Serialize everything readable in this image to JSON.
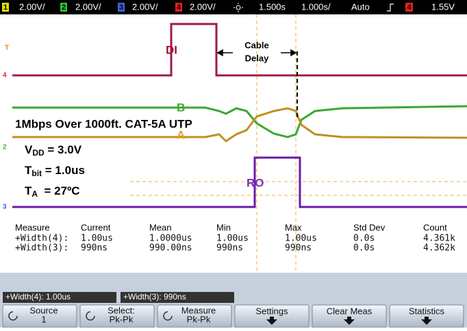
{
  "status_bar": {
    "ch1": {
      "num": "1",
      "scale": "2.00V/"
    },
    "ch2": {
      "num": "2",
      "scale": "2.00V/"
    },
    "ch3": {
      "num": "3",
      "scale": "2.00V/"
    },
    "ch4": {
      "num": "4",
      "scale": "2.00V/"
    },
    "delay": "1.500s",
    "timebase": "1.000s/",
    "mode": "Auto",
    "trigger_source": "4",
    "trigger_level": "1.55V"
  },
  "annotations": {
    "di": "DI",
    "cable_delay": [
      "Cable",
      "Delay"
    ],
    "b": "B",
    "a": "A",
    "headline": "1Mbps Over 1000ft. CAT-5A UTP",
    "vdd": [
      "V",
      "DD",
      " = 3.0V"
    ],
    "tbit": [
      "T",
      "bit",
      " = 1.0us"
    ],
    "ta": [
      "T",
      "A",
      "  = 27ºC"
    ],
    "ro": "RO"
  },
  "channel_markers": [
    "T",
    "4",
    "2",
    "3"
  ],
  "measurements": {
    "header": [
      "Measure",
      "Current",
      "Mean",
      "Min",
      "Max",
      "Std Dev",
      "Count"
    ],
    "rows": [
      [
        "+Width(4):",
        "1.00us",
        "1.0000us",
        "1.00us",
        "1.00us",
        "0.0s",
        "4.361k"
      ],
      [
        "+Width(3):",
        "990ns",
        "990.00ns",
        "990ns",
        "990ns",
        "0.0s",
        "4.362k"
      ]
    ]
  },
  "tabs": [
    "+Width(4): 1.00us",
    "+Width(3): 990ns"
  ],
  "softkeys": [
    [
      "Source",
      "1"
    ],
    [
      "Select:",
      "Pk-Pk"
    ],
    [
      "Measure",
      "Pk-Pk"
    ],
    [
      "Settings"
    ],
    [
      "Clear Meas"
    ],
    [
      "Statistics"
    ]
  ]
}
